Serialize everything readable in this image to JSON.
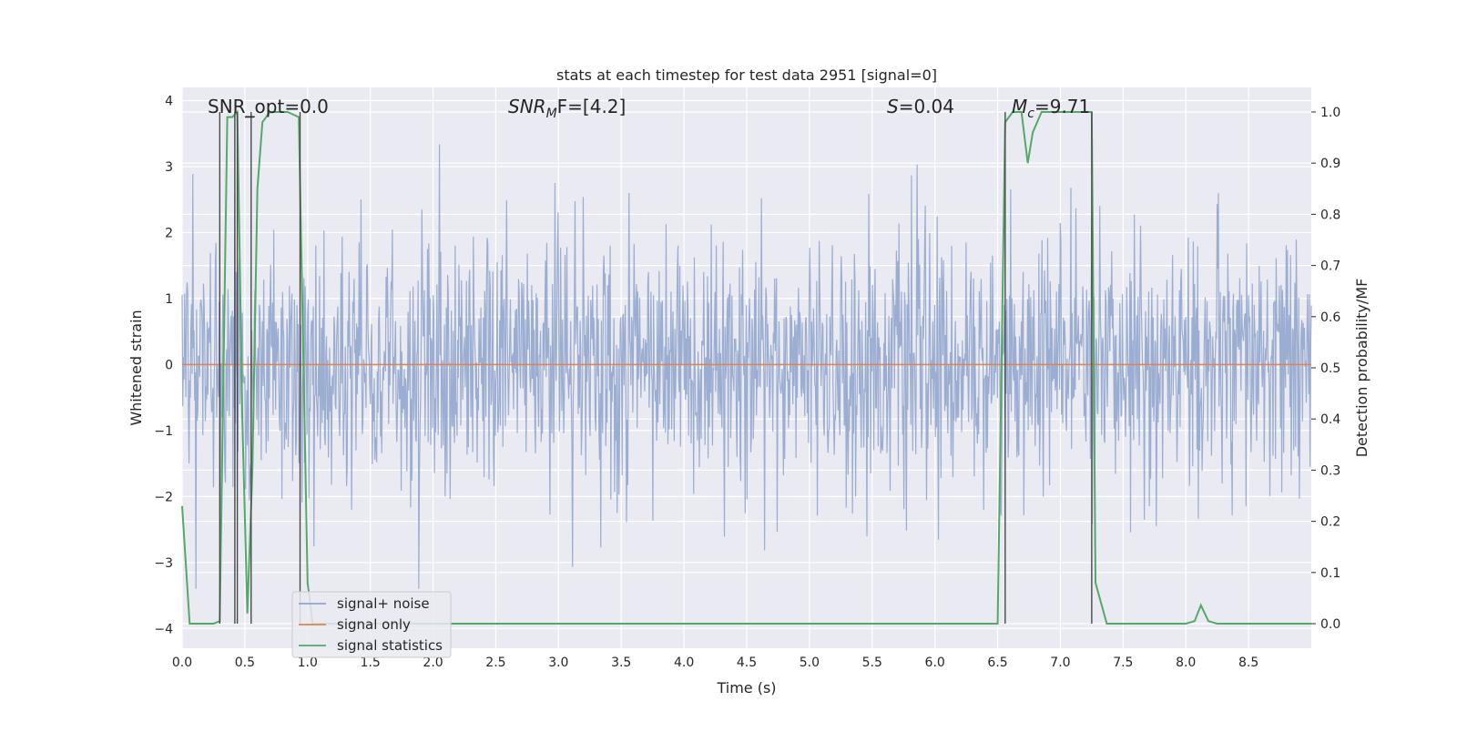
{
  "chart_data": {
    "type": "line",
    "title": "stats at each timestep for test data 2951 [signal=0]",
    "xlabel": "Time (s)",
    "ylabel_left": "Whitened strain",
    "ylabel_right": "Detection probability/MF",
    "xlim": [
      0.0,
      9.0
    ],
    "ylim_left": [
      -4.3,
      4.2
    ],
    "ylim_right": [
      -0.048,
      1.048
    ],
    "x_ticks": [
      "0.0",
      "0.5",
      "1.0",
      "1.5",
      "2.0",
      "2.5",
      "3.0",
      "3.5",
      "4.0",
      "4.5",
      "5.0",
      "5.5",
      "6.0",
      "6.5",
      "7.0",
      "7.5",
      "8.0",
      "8.5"
    ],
    "y_ticks_left": [
      "-4",
      "-3",
      "-2",
      "-1",
      "0",
      "1",
      "2",
      "3",
      "4"
    ],
    "y_ticks_right": [
      "0.0",
      "0.1",
      "0.2",
      "0.3",
      "0.4",
      "0.5",
      "0.6",
      "0.7",
      "0.8",
      "0.9",
      "1.0"
    ],
    "grid": true,
    "legend_position": "lower-left",
    "annotations": {
      "snr_opt": "SNR_opt=0.0",
      "snr_mf_name": "SNR",
      "snr_mf_sub": "M",
      "snr_mf_rest": "F=[4.2]",
      "s_name": "S",
      "s_rest": "=0.04",
      "mc_name": "M",
      "mc_sub": "c",
      "mc_rest": "=9.71"
    },
    "series": [
      {
        "name": "signal+ noise",
        "color": "#92a6cd",
        "axis": "left",
        "description_values": {
          "typical_range": [
            -1.6,
            1.5
          ],
          "max": 3.66,
          "min": -3.4
        }
      },
      {
        "name": "signal only",
        "color": "#dd8452",
        "axis": "left",
        "x": [
          0.0,
          9.0
        ],
        "y": [
          0.0,
          0.0
        ]
      },
      {
        "name": "signal statistics",
        "color": "#55a868",
        "axis": "right",
        "x": [
          0.0,
          0.06,
          0.25,
          0.3,
          0.36,
          0.4,
          0.44,
          0.48,
          0.52,
          0.56,
          0.6,
          0.64,
          0.7,
          0.76,
          0.84,
          0.93,
          1.0,
          1.04,
          1.2,
          2.0,
          3.0,
          4.0,
          5.0,
          6.0,
          6.5,
          6.56,
          6.62,
          6.69,
          6.74,
          6.78,
          6.85,
          7.25,
          7.28,
          7.37,
          8.0,
          8.07,
          8.12,
          8.18,
          8.25,
          9.0
        ],
        "y": [
          0.23,
          0.0,
          0.0,
          0.005,
          0.99,
          0.99,
          1.0,
          0.4,
          0.02,
          0.3,
          0.85,
          0.98,
          1.0,
          1.0,
          1.0,
          0.99,
          0.08,
          0.0,
          0.0,
          0.0,
          0.0,
          0.0,
          0.0,
          0.0,
          0.0,
          0.98,
          1.0,
          1.0,
          0.9,
          0.96,
          1.0,
          1.0,
          0.08,
          0.0,
          0.0,
          0.005,
          0.036,
          0.005,
          0.0,
          0.0
        ]
      },
      {
        "name": "detection markers",
        "color": "#4a4a4a",
        "axis": "right",
        "marker_times": [
          0.3,
          0.42,
          0.44,
          0.55,
          0.94,
          6.56,
          7.25
        ]
      }
    ]
  }
}
